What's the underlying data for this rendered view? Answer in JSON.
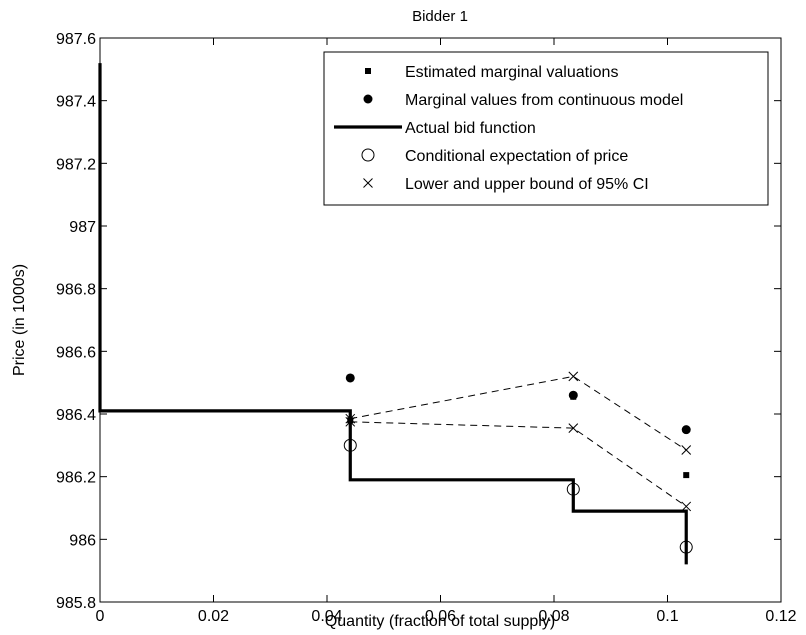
{
  "chart_data": {
    "type": "line",
    "title": "Bidder 1",
    "xlabel": "Quantity (fraction of total supply)",
    "ylabel": "Price (in 1000s)",
    "xlim": [
      0,
      0.12
    ],
    "ylim": [
      985.8,
      987.6
    ],
    "xticks": [
      0,
      0.02,
      0.04,
      0.06,
      0.08,
      0.1,
      0.12
    ],
    "xtick_labels": [
      "0",
      "0.02",
      "0.04",
      "0.06",
      "0.08",
      "0.1",
      "0.12"
    ],
    "yticks": [
      985.8,
      986,
      986.2,
      986.4,
      986.6,
      986.8,
      987,
      987.2,
      987.4,
      987.6
    ],
    "ytick_labels": [
      "985.8",
      "986",
      "986.2",
      "986.4",
      "986.6",
      "986.8",
      "987",
      "987.2",
      "987.4",
      "987.6"
    ],
    "grid": false,
    "legend_position": "top-right",
    "series": [
      {
        "name": "Estimated marginal valuations",
        "marker": "square",
        "points": [
          [
            0.0441,
            986.38
          ],
          [
            0.0834,
            986.455
          ],
          [
            0.1033,
            986.205
          ]
        ]
      },
      {
        "name": "Marginal values from continuous model",
        "marker": "dot",
        "points": [
          [
            0.0441,
            986.515
          ],
          [
            0.0834,
            986.46
          ],
          [
            0.1033,
            986.35
          ]
        ]
      },
      {
        "name": "Actual bid function",
        "style": "step",
        "points": [
          [
            0,
            987.52
          ],
          [
            0,
            986.41
          ],
          [
            0.0441,
            986.41
          ],
          [
            0.0441,
            986.19
          ],
          [
            0.0834,
            986.19
          ],
          [
            0.0834,
            986.09
          ],
          [
            0.1033,
            986.09
          ],
          [
            0.1033,
            985.92
          ]
        ]
      },
      {
        "name": "Conditional expectation of price",
        "marker": "circle",
        "points": [
          [
            0.0441,
            986.3
          ],
          [
            0.0834,
            986.16
          ],
          [
            0.1033,
            985.975
          ]
        ]
      },
      {
        "name": "Lower and upper bound of 95% CI",
        "marker": "x",
        "upper": [
          [
            0.0441,
            986.385
          ],
          [
            0.0834,
            986.52
          ],
          [
            0.1033,
            986.285
          ]
        ],
        "lower": [
          [
            0.0441,
            986.375
          ],
          [
            0.0834,
            986.355
          ],
          [
            0.1033,
            986.105
          ]
        ]
      }
    ]
  }
}
